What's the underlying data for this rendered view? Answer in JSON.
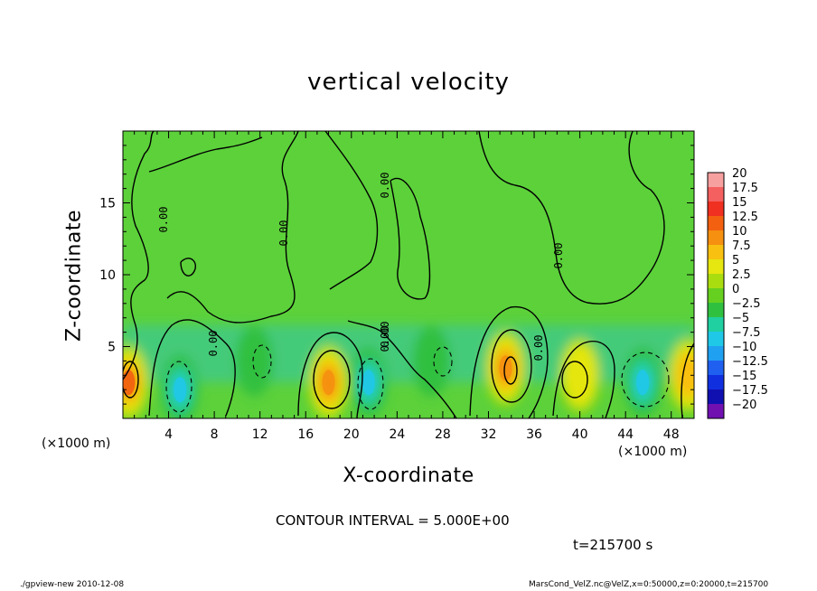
{
  "chart_data": {
    "type": "heatmap",
    "title": "vertical velocity",
    "xlabel": "X-coordinate",
    "ylabel": "Z-coordinate",
    "x_unit_left": "(×1000 m)",
    "x_unit_right": "(×1000 m)",
    "x_ticks": [
      "4",
      "8",
      "12",
      "16",
      "20",
      "24",
      "28",
      "32",
      "36",
      "40",
      "44",
      "48"
    ],
    "x_tick_values": [
      4,
      8,
      12,
      16,
      20,
      24,
      28,
      32,
      36,
      40,
      44,
      48
    ],
    "y_ticks": [
      "5",
      "10",
      "15"
    ],
    "y_tick_values": [
      5,
      10,
      15
    ],
    "xlim": [
      0,
      50
    ],
    "ylim": [
      0,
      20
    ],
    "contour_interval": "CONTOUR INTERVAL = 5.000E+00",
    "time_label": "t=215700 s",
    "contour_labels": [
      "0.00",
      "0.00",
      "0.00",
      "0.00",
      "0.00",
      "0.00",
      "0.00",
      "0.00"
    ],
    "colorbar": {
      "labels": [
        "20",
        "17.5",
        "15",
        "12.5",
        "10",
        "7.5",
        "5",
        "2.5",
        "0",
        "−2.5",
        "−5",
        "−7.5",
        "−10",
        "−12.5",
        "−15",
        "−17.5",
        "−20"
      ],
      "colors": [
        "#f7a0a0",
        "#f46060",
        "#f03020",
        "#f26010",
        "#f59010",
        "#f8c010",
        "#e6e610",
        "#aadd10",
        "#66d020",
        "#30c040",
        "#20d0a0",
        "#20c8e8",
        "#20a0f0",
        "#2060f0",
        "#1030e0",
        "#1010b0",
        "#7010b0"
      ]
    },
    "features": [
      {
        "kind": "updraft",
        "x": 0.5,
        "z": 2.5,
        "peak": 12.5
      },
      {
        "kind": "downdraft",
        "x": 5.0,
        "z": 2.0,
        "peak": -7.5
      },
      {
        "kind": "downdraft",
        "x": 11.5,
        "z": 4.0,
        "peak": -2.5
      },
      {
        "kind": "updraft",
        "x": 18.0,
        "z": 2.5,
        "peak": 10.0
      },
      {
        "kind": "downdraft",
        "x": 21.5,
        "z": 2.5,
        "peak": -7.5
      },
      {
        "kind": "downdraft",
        "x": 27.0,
        "z": 4.0,
        "peak": -2.5
      },
      {
        "kind": "updraft",
        "x": 33.5,
        "z": 3.5,
        "peak": 10.0
      },
      {
        "kind": "updraft",
        "x": 40.0,
        "z": 3.0,
        "peak": 5.0
      },
      {
        "kind": "downdraft",
        "x": 45.5,
        "z": 2.5,
        "peak": -7.5
      },
      {
        "kind": "updraft",
        "x": 49.5,
        "z": 3.0,
        "peak": 7.5
      }
    ]
  },
  "footer": {
    "left": "./gpview-new  2010-12-08",
    "right": "MarsCond_VelZ.nc@VelZ,x=0:50000,z=0:20000,t=215700"
  }
}
